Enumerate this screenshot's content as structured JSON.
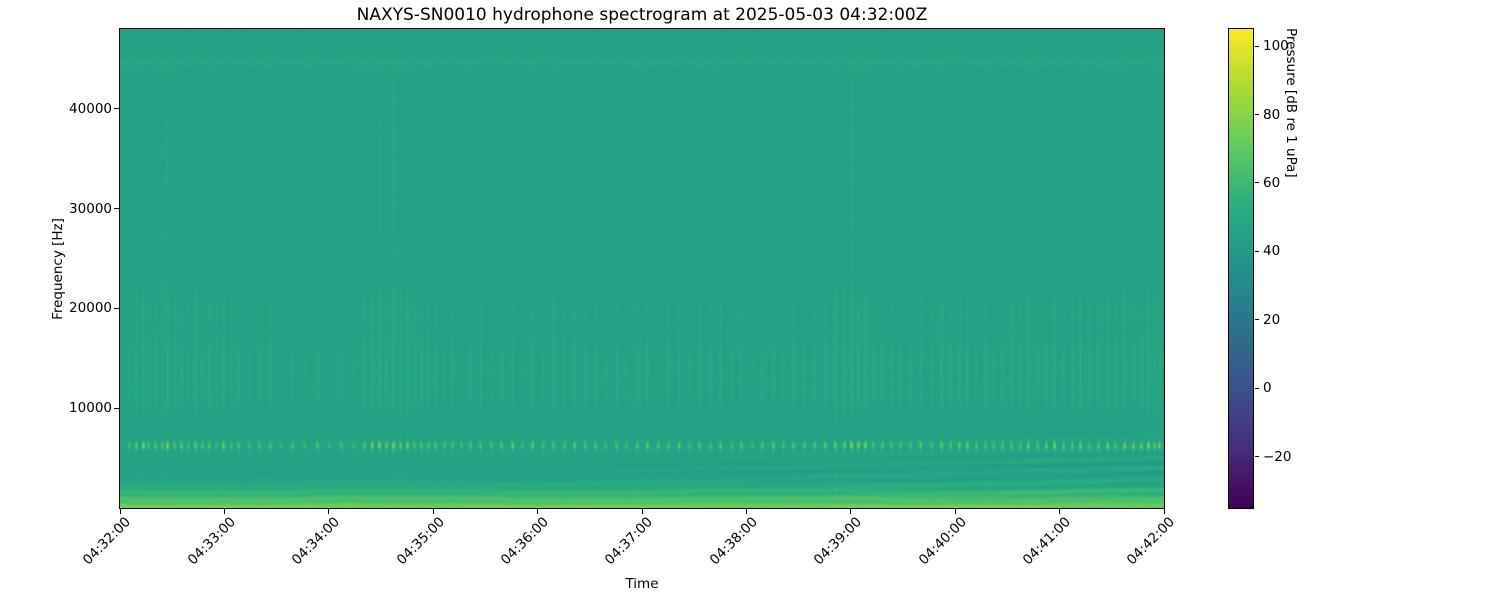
{
  "chart_data": {
    "type": "heatmap",
    "subtype": "hydrophone-spectrogram",
    "title": "NAXYS-SN0010 hydrophone spectrogram at 2025-05-03 04:32:00Z",
    "xlabel": "Time",
    "ylabel": "Frequency [Hz]",
    "x_tick_labels": [
      "04:32:00",
      "04:33:00",
      "04:34:00",
      "04:35:00",
      "04:36:00",
      "04:37:00",
      "04:38:00",
      "04:39:00",
      "04:40:00",
      "04:41:00",
      "04:42:00"
    ],
    "x_range_seconds": [
      0,
      600
    ],
    "y_ticks_hz": [
      10000,
      20000,
      30000,
      40000
    ],
    "y_range_hz": [
      0,
      48000
    ],
    "grid": false,
    "legend": "none",
    "colormap": "viridis",
    "colormap_anchors": [
      "#440154",
      "#472d7b",
      "#3b528b",
      "#2c728e",
      "#21918c",
      "#27ad81",
      "#5ec962",
      "#aadc32",
      "#fde725"
    ],
    "colorbar": {
      "label": "Pressure [dB re 1 uPa]",
      "tick_values": [
        100,
        80,
        60,
        40,
        20,
        0,
        -20
      ],
      "vmin": -35,
      "vmax": 105
    },
    "field_model": {
      "background_db": 45,
      "low_freq_surface_db": 74,
      "low_freq_rolloff_hz": 3500,
      "low_freq_ripple_db": 3,
      "right_side_band_ripple_db": 5,
      "right_side_band_center_hz": 3500,
      "hf_line_hz": 44600,
      "hf_line_boost_db": 3.5,
      "click_dot_hz": 6250,
      "click_dot_boost_db": 34,
      "click_band_hz": 14000,
      "click_band_boost_db": 7.5,
      "click_band2_hz": 19800,
      "click_band2_boost_db": 4,
      "noise_db": 2.4
    },
    "click_events": [
      [
        5,
        0.45
      ],
      [
        9,
        0.6
      ],
      [
        13,
        0.9
      ],
      [
        16,
        0.5
      ],
      [
        20,
        0.65
      ],
      [
        24,
        0.5
      ],
      [
        27,
        1.0
      ],
      [
        31,
        0.55
      ],
      [
        35,
        0.7
      ],
      [
        39,
        0.5
      ],
      [
        43,
        0.8
      ],
      [
        47,
        0.55
      ],
      [
        51,
        0.65
      ],
      [
        55,
        0.45
      ],
      [
        59,
        0.75
      ],
      [
        64,
        0.5
      ],
      [
        68,
        0.6
      ],
      [
        74,
        0.45
      ],
      [
        80,
        0.55
      ],
      [
        86,
        0.65
      ],
      [
        92,
        0.4
      ],
      [
        99,
        0.55
      ],
      [
        106,
        0.45
      ],
      [
        113,
        0.6
      ],
      [
        120,
        0.4
      ],
      [
        127,
        0.5
      ],
      [
        134,
        0.45
      ],
      [
        140,
        0.65
      ],
      [
        145,
        0.8
      ],
      [
        149,
        0.95
      ],
      [
        153,
        0.7
      ],
      [
        157,
        1.0
      ],
      [
        161,
        0.75
      ],
      [
        165,
        0.85
      ],
      [
        169,
        0.6
      ],
      [
        173,
        0.7
      ],
      [
        177,
        0.55
      ],
      [
        181,
        0.65
      ],
      [
        186,
        0.5
      ],
      [
        191,
        0.6
      ],
      [
        196,
        0.45
      ],
      [
        201,
        0.55
      ],
      [
        207,
        0.7
      ],
      [
        213,
        0.5
      ],
      [
        219,
        0.6
      ],
      [
        225,
        0.75
      ],
      [
        231,
        0.5
      ],
      [
        237,
        0.65
      ],
      [
        243,
        0.55
      ],
      [
        249,
        0.7
      ],
      [
        255,
        0.5
      ],
      [
        261,
        0.8
      ],
      [
        267,
        0.55
      ],
      [
        273,
        0.65
      ],
      [
        279,
        0.5
      ],
      [
        285,
        0.7
      ],
      [
        291,
        0.55
      ],
      [
        297,
        0.65
      ],
      [
        303,
        0.8
      ],
      [
        309,
        0.5
      ],
      [
        315,
        0.6
      ],
      [
        321,
        0.7
      ],
      [
        327,
        0.5
      ],
      [
        333,
        0.65
      ],
      [
        339,
        0.55
      ],
      [
        345,
        0.75
      ],
      [
        351,
        0.5
      ],
      [
        357,
        0.6
      ],
      [
        363,
        0.45
      ],
      [
        369,
        0.55
      ],
      [
        375,
        0.65
      ],
      [
        381,
        0.5
      ],
      [
        387,
        0.7
      ],
      [
        393,
        0.55
      ],
      [
        399,
        0.6
      ],
      [
        405,
        0.75
      ],
      [
        411,
        0.85
      ],
      [
        416,
        0.7
      ],
      [
        420,
        1.0
      ],
      [
        424,
        0.8
      ],
      [
        428,
        0.9
      ],
      [
        433,
        0.6
      ],
      [
        438,
        0.7
      ],
      [
        443,
        0.55
      ],
      [
        448,
        0.65
      ],
      [
        454,
        0.5
      ],
      [
        460,
        0.75
      ],
      [
        466,
        0.55
      ],
      [
        472,
        0.85
      ],
      [
        477,
        0.6
      ],
      [
        482,
        0.7
      ],
      [
        487,
        0.8
      ],
      [
        492,
        0.6
      ],
      [
        497,
        0.7
      ],
      [
        502,
        0.55
      ],
      [
        507,
        0.65
      ],
      [
        512,
        0.75
      ],
      [
        517,
        0.6
      ],
      [
        522,
        0.85
      ],
      [
        527,
        0.65
      ],
      [
        532,
        0.7
      ],
      [
        537,
        0.8
      ],
      [
        542,
        0.6
      ],
      [
        547,
        0.7
      ],
      [
        552,
        0.85
      ],
      [
        557,
        0.6
      ],
      [
        562,
        0.7
      ],
      [
        567,
        0.8
      ],
      [
        572,
        0.6
      ],
      [
        577,
        0.9
      ],
      [
        582,
        0.7
      ],
      [
        587,
        0.75
      ],
      [
        591,
        0.85
      ],
      [
        594,
        0.6
      ],
      [
        597,
        0.9
      ]
    ]
  }
}
